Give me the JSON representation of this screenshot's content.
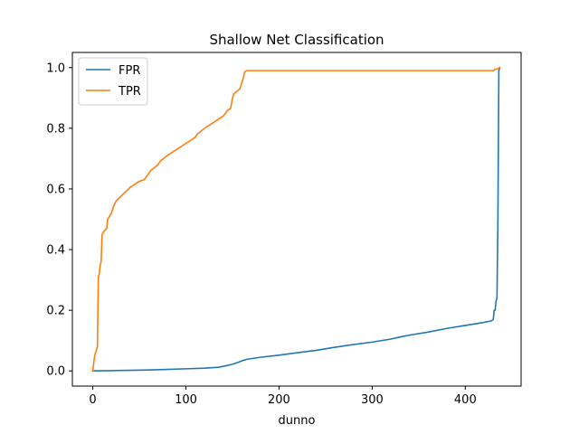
{
  "chart_data": {
    "type": "line",
    "title": "Shallow Net Classification",
    "xlabel": "dunno",
    "ylabel": "",
    "xlim": [
      -21.9,
      459.9
    ],
    "ylim": [
      -0.05,
      1.05
    ],
    "xticks": [
      0,
      100,
      200,
      300,
      400
    ],
    "yticks": [
      0.0,
      0.2,
      0.4,
      0.6,
      0.8,
      1.0
    ],
    "xtick_labels": [
      "0",
      "100",
      "200",
      "300",
      "400"
    ],
    "ytick_labels": [
      "0.0",
      "0.2",
      "0.4",
      "0.6",
      "0.8",
      "1.0"
    ],
    "grid": false,
    "legend": "top-left",
    "series": [
      {
        "name": "FPR",
        "color": "#1f77b4",
        "x": [
          0,
          20,
          40,
          60,
          80,
          100,
          120,
          135,
          140,
          150,
          155,
          160,
          165,
          180,
          200,
          220,
          240,
          260,
          280,
          300,
          320,
          330,
          340,
          360,
          380,
          400,
          420,
          428,
          430,
          431,
          432,
          433,
          434,
          435,
          436,
          437
        ],
        "y": [
          0.0,
          0.001,
          0.002,
          0.003,
          0.005,
          0.007,
          0.009,
          0.012,
          0.015,
          0.022,
          0.027,
          0.033,
          0.038,
          0.045,
          0.052,
          0.06,
          0.068,
          0.078,
          0.087,
          0.095,
          0.105,
          0.112,
          0.118,
          0.128,
          0.14,
          0.15,
          0.16,
          0.165,
          0.17,
          0.2,
          0.2,
          0.23,
          0.24,
          0.5,
          0.99,
          1.0
        ]
      },
      {
        "name": "TPR",
        "color": "#ff7f0e",
        "x": [
          0,
          2,
          3,
          4,
          5,
          6,
          7,
          8,
          9,
          10,
          12,
          15,
          16,
          18,
          20,
          22,
          25,
          30,
          35,
          40,
          45,
          50,
          55,
          60,
          62,
          70,
          72,
          80,
          90,
          100,
          110,
          112,
          120,
          130,
          140,
          145,
          148,
          150,
          151,
          152,
          154,
          158,
          160,
          162,
          163,
          165,
          200,
          250,
          300,
          350,
          400,
          430,
          432,
          434,
          437
        ],
        "y": [
          0.0,
          0.05,
          0.06,
          0.07,
          0.08,
          0.31,
          0.32,
          0.35,
          0.36,
          0.45,
          0.46,
          0.47,
          0.5,
          0.51,
          0.52,
          0.54,
          0.56,
          0.575,
          0.59,
          0.605,
          0.615,
          0.625,
          0.63,
          0.65,
          0.66,
          0.68,
          0.69,
          0.71,
          0.73,
          0.75,
          0.77,
          0.78,
          0.8,
          0.82,
          0.84,
          0.86,
          0.865,
          0.9,
          0.91,
          0.915,
          0.92,
          0.93,
          0.95,
          0.97,
          0.985,
          0.99,
          0.99,
          0.99,
          0.99,
          0.99,
          0.99,
          0.99,
          0.995,
          0.995,
          1.0
        ]
      }
    ]
  }
}
